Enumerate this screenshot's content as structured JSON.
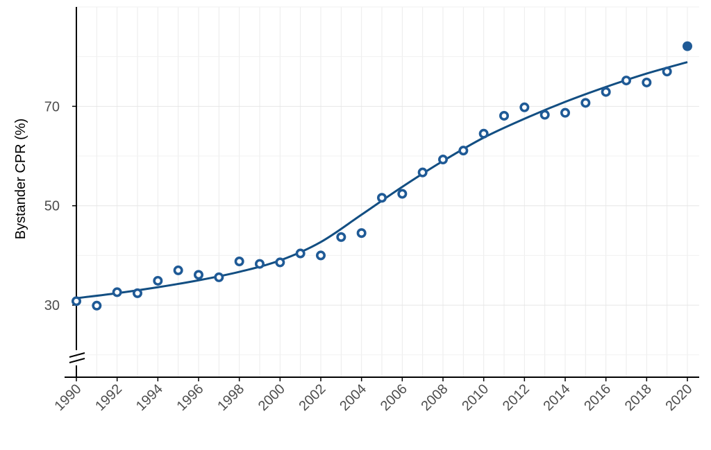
{
  "chart_data": {
    "type": "scatter",
    "title": "",
    "xlabel": "",
    "ylabel": "Bystander CPR (%)",
    "xlim": [
      1990,
      2020
    ],
    "ylim": [
      15.5,
      90
    ],
    "x_ticks": [
      1990,
      1992,
      1994,
      1996,
      1998,
      2000,
      2002,
      2004,
      2006,
      2008,
      2010,
      2012,
      2014,
      2016,
      2018,
      2020
    ],
    "y_ticks": [
      30,
      50,
      70
    ],
    "grid": true,
    "axis_break": "y",
    "colors": {
      "marker": "#1f5a96",
      "line": "#124e82"
    },
    "series": [
      {
        "kind": "open-markers",
        "x": [
          1990,
          1991,
          1992,
          1993,
          1994,
          1995,
          1996,
          1997,
          1998,
          1999,
          2000,
          2001,
          2002,
          2003,
          2004,
          2005,
          2006,
          2007,
          2008,
          2009,
          2010,
          2011,
          2012,
          2013,
          2014,
          2015,
          2016,
          2017,
          2018,
          2019
        ],
        "y": [
          30.8,
          29.9,
          32.6,
          32.4,
          34.9,
          37.0,
          36.1,
          35.6,
          38.8,
          38.3,
          38.6,
          40.4,
          40.0,
          43.7,
          44.5,
          51.6,
          52.4,
          56.7,
          59.3,
          61.1,
          64.5,
          68.1,
          69.8,
          68.3,
          68.7,
          70.7,
          72.9,
          75.2,
          74.8,
          77.0
        ]
      },
      {
        "kind": "filled-marker",
        "x": [
          2020
        ],
        "y": [
          82.1
        ]
      },
      {
        "kind": "fitted-line",
        "x": [
          1990,
          1992,
          1994,
          1996,
          1998,
          2000,
          2002,
          2004,
          2006,
          2008,
          2010,
          2012,
          2014,
          2016,
          2018,
          2020
        ],
        "y": [
          31.4,
          32.4,
          33.6,
          35.0,
          36.7,
          39.0,
          42.7,
          48.2,
          53.8,
          59.0,
          63.7,
          67.5,
          70.9,
          73.9,
          76.6,
          78.9
        ]
      }
    ]
  }
}
